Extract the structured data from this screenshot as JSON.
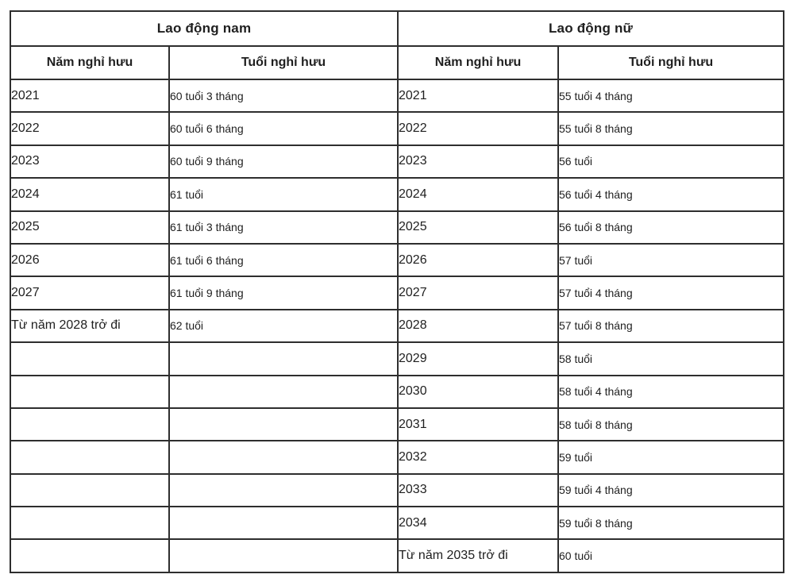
{
  "table": {
    "groups": [
      {
        "title": "Lao động nam",
        "columns": [
          "Năm nghỉ hưu",
          "Tuổi nghỉ hưu"
        ]
      },
      {
        "title": "Lao động nữ",
        "columns": [
          "Năm nghỉ hưu",
          "Tuổi nghỉ hưu"
        ]
      }
    ],
    "rows": [
      [
        "2021",
        "60 tuổi 3 tháng",
        "2021",
        "55 tuổi 4 tháng"
      ],
      [
        "2022",
        "60 tuổi 6 tháng",
        "2022",
        "55 tuổi 8 tháng"
      ],
      [
        "2023",
        "60 tuổi 9 tháng",
        "2023",
        "56 tuổi"
      ],
      [
        "2024",
        "61 tuổi",
        "2024",
        "56 tuổi 4 tháng"
      ],
      [
        "2025",
        "61 tuổi 3 tháng",
        "2025",
        "56 tuổi 8 tháng"
      ],
      [
        "2026",
        "61 tuổi 6 tháng",
        "2026",
        "57 tuổi"
      ],
      [
        "2027",
        "61 tuổi 9 tháng",
        "2027",
        "57 tuổi 4 tháng"
      ],
      [
        "Từ năm 2028 trở đi",
        "62 tuổi",
        "2028",
        "57 tuổi 8 tháng"
      ],
      [
        "",
        "",
        "2029",
        "58 tuổi"
      ],
      [
        "",
        "",
        "2030",
        "58 tuổi 4 tháng"
      ],
      [
        "",
        "",
        "2031",
        "58 tuổi 8 tháng"
      ],
      [
        "",
        "",
        "2032",
        "59 tuổi"
      ],
      [
        "",
        "",
        "2033",
        "59 tuổi 4 tháng"
      ],
      [
        "",
        "",
        "2034",
        "59 tuổi 8 tháng"
      ],
      [
        "",
        "",
        "Từ năm 2035 trở đi",
        "60 tuổi"
      ]
    ],
    "colors": {
      "border": "#2e2e2e",
      "text": "#1f1f1f",
      "background": "#ffffff"
    }
  }
}
